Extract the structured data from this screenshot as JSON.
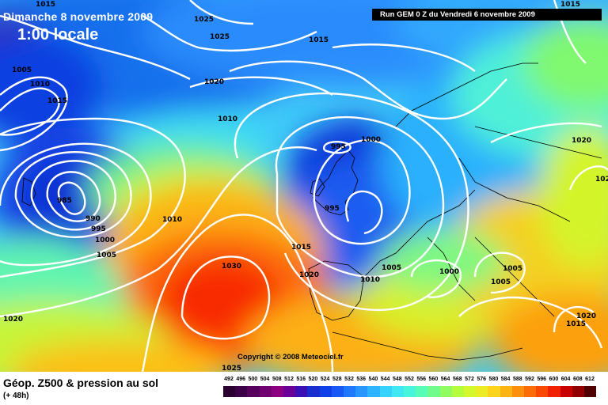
{
  "titles": {
    "date": "Dimanche 8 novembre 2009",
    "hour": "1:00 locale",
    "run": "Run GEM 0 Z du Vendredi 6 novembre 2009",
    "product": "Géop. Z500 & pression au sol",
    "lead_time": "(+ 48h)",
    "copyright": "Copyright © 2008 Meteociel.fr"
  },
  "legend": {
    "labels": [
      "492",
      "496",
      "500",
      "504",
      "508",
      "512",
      "516",
      "520",
      "524",
      "528",
      "532",
      "536",
      "540",
      "544",
      "548",
      "552",
      "556",
      "560",
      "564",
      "568",
      "572",
      "576",
      "580",
      "584",
      "588",
      "592",
      "596",
      "600",
      "604",
      "608",
      "612"
    ],
    "colors": [
      "#2a0030",
      "#3c0048",
      "#56005e",
      "#700070",
      "#8a0080",
      "#6a0098",
      "#3a10b4",
      "#1a2ed0",
      "#1040e8",
      "#1858f4",
      "#2078fc",
      "#2896fc",
      "#2eb4fc",
      "#36d2fc",
      "#40e8f4",
      "#48f4dc",
      "#58fcb8",
      "#70fc8c",
      "#90fc60",
      "#b4fc3c",
      "#d4f82c",
      "#ecec24",
      "#fcd41c",
      "#fcb414",
      "#fc900c",
      "#fc6c08",
      "#f84804",
      "#f02000",
      "#c80000",
      "#900000",
      "#500000"
    ]
  },
  "isobars": [
    {
      "value": "1015",
      "label": "label-1015-a"
    },
    {
      "value": "1025",
      "label": "label-1025-a"
    },
    {
      "value": "1025",
      "label": "label-1025-b"
    },
    {
      "value": "1015",
      "label": "label-1015-b"
    },
    {
      "value": "1005",
      "label": "label-1005-a"
    },
    {
      "value": "1010",
      "label": "label-1010-a"
    },
    {
      "value": "1015",
      "label": "label-1015-c"
    },
    {
      "value": "1020",
      "label": "label-1020-a"
    },
    {
      "value": "1010",
      "label": "label-1010-b"
    },
    {
      "value": "995",
      "label": "label-995-a"
    },
    {
      "value": "1000",
      "label": "label-1000-a"
    },
    {
      "value": "985",
      "label": "label-985"
    },
    {
      "value": "990",
      "label": "label-990"
    },
    {
      "value": "995",
      "label": "label-995-b"
    },
    {
      "value": "1000",
      "label": "label-1000-b"
    },
    {
      "value": "1005",
      "label": "label-1005-b"
    },
    {
      "value": "1010",
      "label": "label-1010-c"
    },
    {
      "value": "995",
      "label": "label-995-c"
    },
    {
      "value": "1030",
      "label": "label-1030"
    },
    {
      "value": "1015",
      "label": "label-1015-d"
    },
    {
      "value": "1020",
      "label": "label-1020-b"
    },
    {
      "value": "1010",
      "label": "label-1010-d"
    },
    {
      "value": "1005",
      "label": "label-1005-c"
    },
    {
      "value": "1000",
      "label": "label-1000-c"
    },
    {
      "value": "1005",
      "label": "label-1005-d"
    },
    {
      "value": "1005",
      "label": "label-1005-e"
    },
    {
      "value": "1020",
      "label": "label-1020-c"
    },
    {
      "value": "1015",
      "label": "label-1015-e"
    },
    {
      "value": "1020",
      "label": "label-1020-d"
    },
    {
      "value": "1020",
      "label": "label-1020-e"
    },
    {
      "value": "1025",
      "label": "label-1025-c"
    },
    {
      "value": "102",
      "label": "label-102-edge"
    },
    {
      "value": "1015",
      "label": "label-1015-f"
    }
  ]
}
